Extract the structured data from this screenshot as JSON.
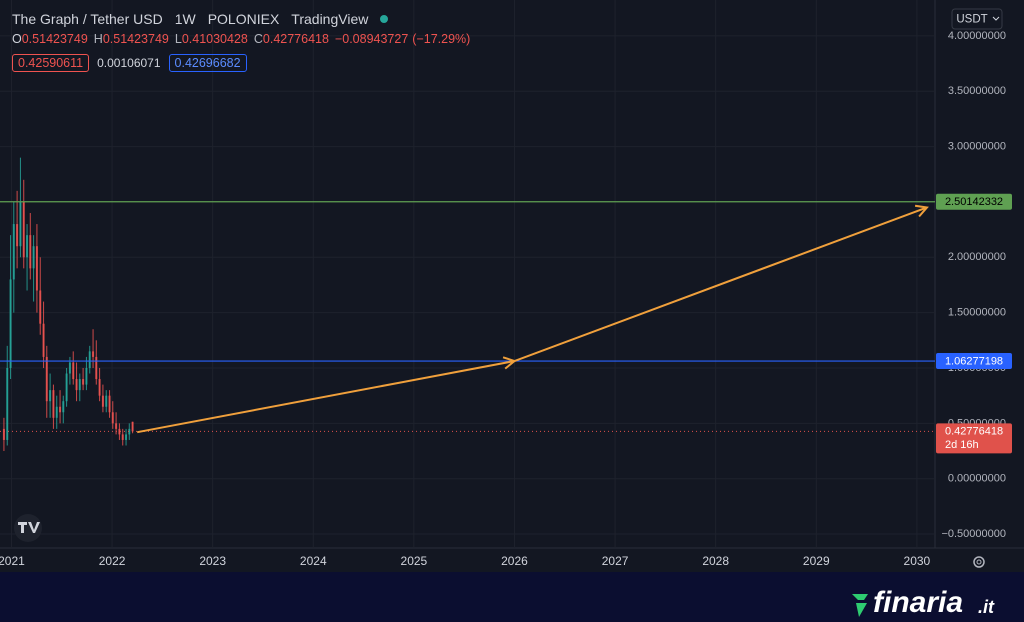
{
  "chart_data": {
    "type": "candlestick",
    "symbol": "The Graph / Tether USD",
    "interval": "1W",
    "exchange": "POLONIEX",
    "platform": "TradingView",
    "ohlc_letters": [
      "O",
      "H",
      "L",
      "C"
    ],
    "ohlc": [
      0.51423749,
      0.51423749,
      0.41030428,
      0.42776418
    ],
    "change": {
      "value": -0.08943727,
      "label": "−0.08943727"
    },
    "change_pct": {
      "value": -17.29,
      "label": "(−17.29%)"
    },
    "bid": 0.42590611,
    "spread": 0.00106071,
    "ask": 0.42696682,
    "currency": "USDT",
    "countdown": "2d 16h",
    "brand": "finaria",
    "brand_tld": ".it",
    "up_color": "#26a69a",
    "down_color": "#ef5350",
    "grid": true,
    "xlim": [
      2020.886,
      2030.18
    ],
    "xticks": [
      2021,
      2022,
      2023,
      2024,
      2025,
      2026,
      2027,
      2028,
      2029,
      2030
    ],
    "ylim": [
      -0.626,
      4.324
    ],
    "yticks": [
      {
        "value": -0.5,
        "label": "−0.50000000"
      },
      {
        "value": 0,
        "label": "0.00000000"
      },
      {
        "value": 0.5,
        "label": "0.50000000"
      },
      {
        "value": 1,
        "label": "1.00000000"
      },
      {
        "value": 1.5,
        "label": "1.50000000"
      },
      {
        "value": 2,
        "label": "2.00000000"
      },
      {
        "value": 2.5,
        "label": "2.50000000"
      },
      {
        "value": 3,
        "label": "3.00000000"
      },
      {
        "value": 3.5,
        "label": "3.50000000"
      },
      {
        "value": 4,
        "label": "4.00000000"
      }
    ],
    "x": [
      2020.925,
      2020.958,
      2020.991,
      2021.023,
      2021.056,
      2021.089,
      2021.122,
      2021.155,
      2021.187,
      2021.22,
      2021.253,
      2021.286,
      2021.319,
      2021.351,
      2021.384,
      2021.417,
      2021.45,
      2021.483,
      2021.515,
      2021.548,
      2021.581,
      2021.614,
      2021.647,
      2021.679,
      2021.712,
      2021.745,
      2021.778,
      2021.811,
      2021.843,
      2021.876,
      2021.909,
      2021.942,
      2021.975,
      2022.007,
      2022.04,
      2022.073,
      2022.106,
      2022.139,
      2022.171,
      2022.204
    ],
    "open": [
      0.45,
      0.35,
      1.0,
      1.8,
      2.3,
      2.1,
      2.5,
      2.0,
      2.2,
      1.9,
      2.1,
      1.7,
      1.4,
      1.1,
      0.7,
      0.8,
      0.55,
      0.65,
      0.6,
      0.7,
      0.95,
      1.05,
      0.9,
      0.8,
      0.9,
      0.85,
      1.0,
      1.15,
      1.1,
      0.9,
      0.75,
      0.65,
      0.75,
      0.6,
      0.5,
      0.45,
      0.4,
      0.35,
      0.4,
      0.51423749
    ],
    "high": [
      0.55,
      1.2,
      2.2,
      2.5,
      2.6,
      2.9,
      2.7,
      2.3,
      2.4,
      2.2,
      2.3,
      2.0,
      1.6,
      1.2,
      0.95,
      0.85,
      0.75,
      0.8,
      0.75,
      1.0,
      1.1,
      1.15,
      1.05,
      0.95,
      1.0,
      1.1,
      1.2,
      1.35,
      1.25,
      1.0,
      0.85,
      0.8,
      0.8,
      0.7,
      0.6,
      0.5,
      0.45,
      0.45,
      0.5,
      0.51423749
    ],
    "low": [
      0.25,
      0.3,
      0.9,
      1.5,
      1.9,
      2.0,
      1.9,
      1.7,
      1.8,
      1.6,
      1.5,
      1.3,
      1.0,
      0.55,
      0.55,
      0.45,
      0.45,
      0.5,
      0.5,
      0.65,
      0.85,
      0.85,
      0.7,
      0.7,
      0.8,
      0.8,
      0.95,
      1.0,
      0.85,
      0.7,
      0.6,
      0.6,
      0.55,
      0.45,
      0.4,
      0.35,
      0.3,
      0.3,
      0.35,
      0.41030428
    ],
    "close": [
      0.35,
      1.0,
      1.8,
      2.3,
      2.1,
      2.5,
      2.0,
      2.2,
      1.9,
      2.1,
      1.7,
      1.4,
      1.1,
      0.7,
      0.8,
      0.55,
      0.65,
      0.6,
      0.7,
      0.95,
      1.05,
      0.9,
      0.8,
      0.9,
      0.85,
      1.0,
      1.15,
      1.1,
      0.9,
      0.75,
      0.65,
      0.75,
      0.6,
      0.5,
      0.45,
      0.4,
      0.35,
      0.4,
      0.45,
      0.42776418
    ],
    "levels": [
      {
        "value": 2.50142332,
        "color": "#5fa052"
      },
      {
        "value": 1.06277198,
        "color": "#2962ff"
      }
    ],
    "current_price_color": "#e0524b",
    "projection": {
      "x": [
        2022.25,
        2026.0,
        2030.1
      ],
      "y": [
        0.42,
        1.063,
        2.45
      ],
      "color": "#f0a03c"
    }
  }
}
